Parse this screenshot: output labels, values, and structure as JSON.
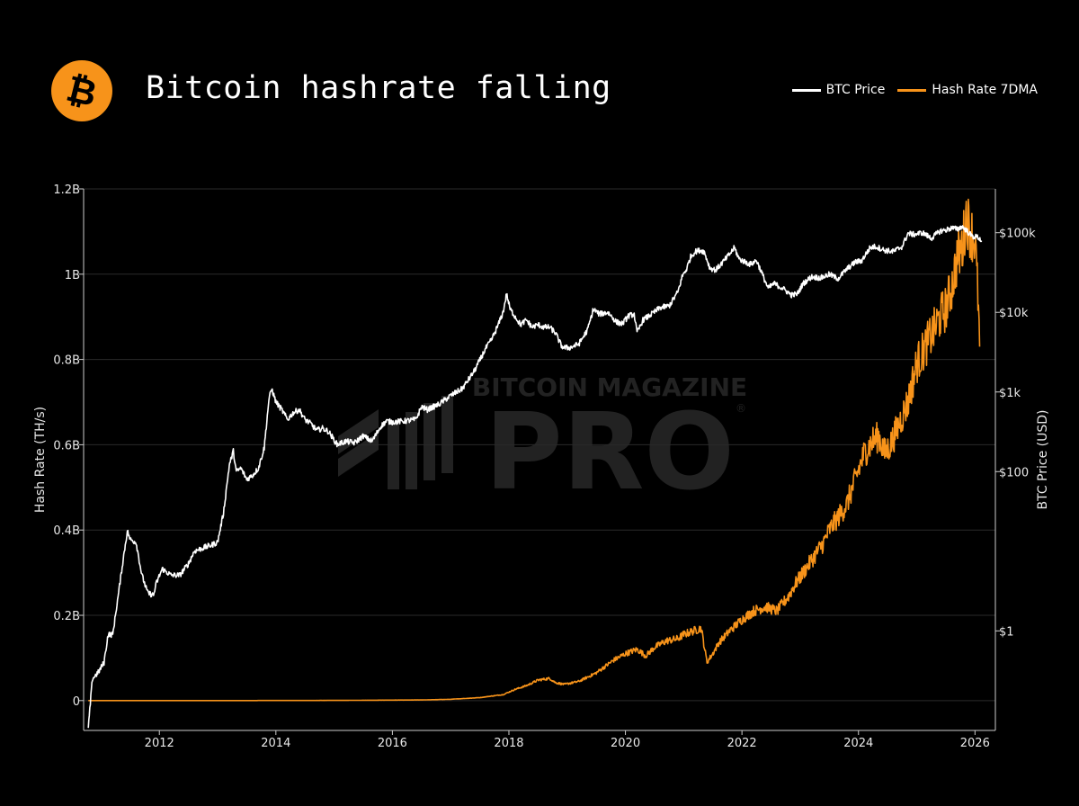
{
  "title": "Bitcoin hashrate falling",
  "logo": {
    "icon": "bitcoin-logo-icon",
    "glyph": "₿",
    "color": "#F7931A"
  },
  "watermark": {
    "line1": "BITCOIN MAGAZINE",
    "line2": "PRO",
    "mark": "®"
  },
  "colors": {
    "price": "#FFFFFF",
    "hashrate": "#F7931A",
    "grid": "#2a2a2a",
    "axis": "#cccccc"
  },
  "chart_data": {
    "type": "line",
    "legend_position": "top-right",
    "grid": true,
    "xlim": [
      2010.7,
      2026.35
    ],
    "x_ticks": [
      2012,
      2014,
      2016,
      2018,
      2020,
      2022,
      2024,
      2026
    ],
    "x_tick_labels": [
      "2012",
      "2014",
      "2016",
      "2018",
      "2020",
      "2022",
      "2024",
      "2026"
    ],
    "y_left": {
      "label": "Hash Rate (TH/s)",
      "range": [
        -0.07,
        1.2
      ],
      "ticks": [
        0,
        0.2,
        0.4,
        0.6,
        0.8,
        1.0,
        1.2
      ],
      "tick_labels": [
        "0",
        "0.2B",
        "0.4B",
        "0.6B",
        "0.8B",
        "1B",
        "1.2B"
      ],
      "unit_note": "values in billions of TH/s"
    },
    "y_right": {
      "label": "BTC Price (USD)",
      "scale": "log",
      "range_log10": [
        -1.25,
        5.55
      ],
      "ticks": [
        1,
        100,
        1000,
        10000,
        100000
      ],
      "tick_labels": [
        "$1",
        "$100",
        "$1k",
        "$10k",
        "$100k"
      ]
    },
    "series": [
      {
        "name": "BTC Price",
        "axis": "right",
        "x": [
          2010.78,
          2010.85,
          2010.95,
          2011.05,
          2011.12,
          2011.2,
          2011.3,
          2011.38,
          2011.45,
          2011.5,
          2011.6,
          2011.7,
          2011.8,
          2011.9,
          2011.95,
          2012.05,
          2012.2,
          2012.35,
          2012.5,
          2012.6,
          2012.75,
          2012.9,
          2013.0,
          2013.1,
          2013.2,
          2013.27,
          2013.32,
          2013.4,
          2013.5,
          2013.6,
          2013.7,
          2013.8,
          2013.88,
          2013.93,
          2014.0,
          2014.1,
          2014.2,
          2014.3,
          2014.4,
          2014.5,
          2014.6,
          2014.7,
          2014.8,
          2014.9,
          2015.0,
          2015.05,
          2015.2,
          2015.35,
          2015.5,
          2015.65,
          2015.8,
          2015.9,
          2016.0,
          2016.2,
          2016.4,
          2016.5,
          2016.6,
          2016.8,
          2017.0,
          2017.2,
          2017.4,
          2017.5,
          2017.6,
          2017.7,
          2017.8,
          2017.9,
          2017.96,
          2018.02,
          2018.1,
          2018.2,
          2018.3,
          2018.4,
          2018.5,
          2018.6,
          2018.7,
          2018.8,
          2018.9,
          2018.95,
          2019.05,
          2019.2,
          2019.35,
          2019.45,
          2019.55,
          2019.7,
          2019.85,
          2019.95,
          2020.05,
          2020.15,
          2020.2,
          2020.3,
          2020.45,
          2020.6,
          2020.75,
          2020.9,
          2020.98,
          2021.05,
          2021.12,
          2021.2,
          2021.28,
          2021.35,
          2021.45,
          2021.55,
          2021.7,
          2021.8,
          2021.87,
          2021.95,
          2022.05,
          2022.15,
          2022.25,
          2022.35,
          2022.45,
          2022.55,
          2022.7,
          2022.85,
          2022.95,
          2023.05,
          2023.2,
          2023.35,
          2023.5,
          2023.65,
          2023.8,
          2023.95,
          2024.05,
          2024.2,
          2024.3,
          2024.45,
          2024.6,
          2024.75,
          2024.85,
          2024.95,
          2025.1,
          2025.25,
          2025.4,
          2025.5,
          2025.6,
          2025.7,
          2025.77,
          2025.85,
          2025.95,
          2026.05,
          2026.12
        ],
        "y": [
          0.06,
          0.25,
          0.3,
          0.4,
          0.9,
          0.9,
          3,
          8,
          18,
          14,
          13,
          5,
          3,
          2.8,
          4,
          6,
          5,
          5,
          7,
          10,
          11,
          12,
          13,
          30,
          120,
          180,
          100,
          110,
          80,
          90,
          110,
          200,
          800,
          1100,
          750,
          600,
          450,
          550,
          600,
          450,
          400,
          330,
          350,
          320,
          250,
          220,
          240,
          230,
          280,
          240,
          370,
          430,
          420,
          430,
          450,
          650,
          600,
          700,
          900,
          1100,
          1800,
          2500,
          3500,
          4500,
          6500,
          10000,
          17000,
          11000,
          9000,
          7000,
          8000,
          6500,
          7000,
          6500,
          6500,
          5500,
          3800,
          3600,
          3600,
          4000,
          6000,
          11000,
          9500,
          10000,
          7500,
          7200,
          9000,
          9500,
          5500,
          8000,
          9500,
          11500,
          12000,
          18000,
          29000,
          35000,
          50000,
          58000,
          60000,
          58000,
          36000,
          34000,
          45000,
          55000,
          65000,
          47000,
          43000,
          40000,
          45000,
          30000,
          20000,
          23000,
          20000,
          16500,
          17000,
          23000,
          28000,
          27000,
          30000,
          26500,
          35000,
          43000,
          44000,
          65000,
          67000,
          60000,
          58000,
          67000,
          98000,
          95000,
          100000,
          85000,
          105000,
          108000,
          115000,
          110000,
          120000,
          108000,
          90000,
          88000,
          78000
        ],
        "color": "#FFFFFF"
      },
      {
        "name": "Hash Rate 7DMA",
        "axis": "left",
        "x": [
          2010.78,
          2013.0,
          2015.0,
          2016.5,
          2017.0,
          2017.5,
          2017.9,
          2018.1,
          2018.3,
          2018.5,
          2018.7,
          2018.8,
          2018.95,
          2019.2,
          2019.5,
          2019.8,
          2020.0,
          2020.2,
          2020.35,
          2020.5,
          2020.7,
          2020.9,
          2021.0,
          2021.2,
          2021.3,
          2021.4,
          2021.5,
          2021.6,
          2021.8,
          2022.0,
          2022.2,
          2022.4,
          2022.5,
          2022.6,
          2022.8,
          2022.9,
          2023.0,
          2023.2,
          2023.4,
          2023.5,
          2023.6,
          2023.8,
          2023.95,
          2024.1,
          2024.25,
          2024.35,
          2024.45,
          2024.55,
          2024.7,
          2024.85,
          2025.0,
          2025.15,
          2025.3,
          2025.4,
          2025.5,
          2025.6,
          2025.7,
          2025.78,
          2025.85,
          2025.92,
          2026.0,
          2026.05,
          2026.08
        ],
        "y": [
          0,
          5e-06,
          0.0004,
          0.0015,
          0.003,
          0.007,
          0.014,
          0.026,
          0.035,
          0.048,
          0.052,
          0.042,
          0.038,
          0.045,
          0.065,
          0.095,
          0.11,
          0.12,
          0.105,
          0.125,
          0.14,
          0.145,
          0.155,
          0.165,
          0.17,
          0.09,
          0.11,
          0.135,
          0.165,
          0.19,
          0.21,
          0.22,
          0.215,
          0.21,
          0.245,
          0.27,
          0.29,
          0.33,
          0.37,
          0.4,
          0.42,
          0.46,
          0.52,
          0.58,
          0.61,
          0.62,
          0.58,
          0.6,
          0.65,
          0.7,
          0.79,
          0.83,
          0.87,
          0.9,
          0.92,
          0.97,
          1.04,
          1.06,
          1.14,
          1.1,
          1.08,
          0.95,
          0.83
        ],
        "color": "#F7931A"
      }
    ]
  }
}
